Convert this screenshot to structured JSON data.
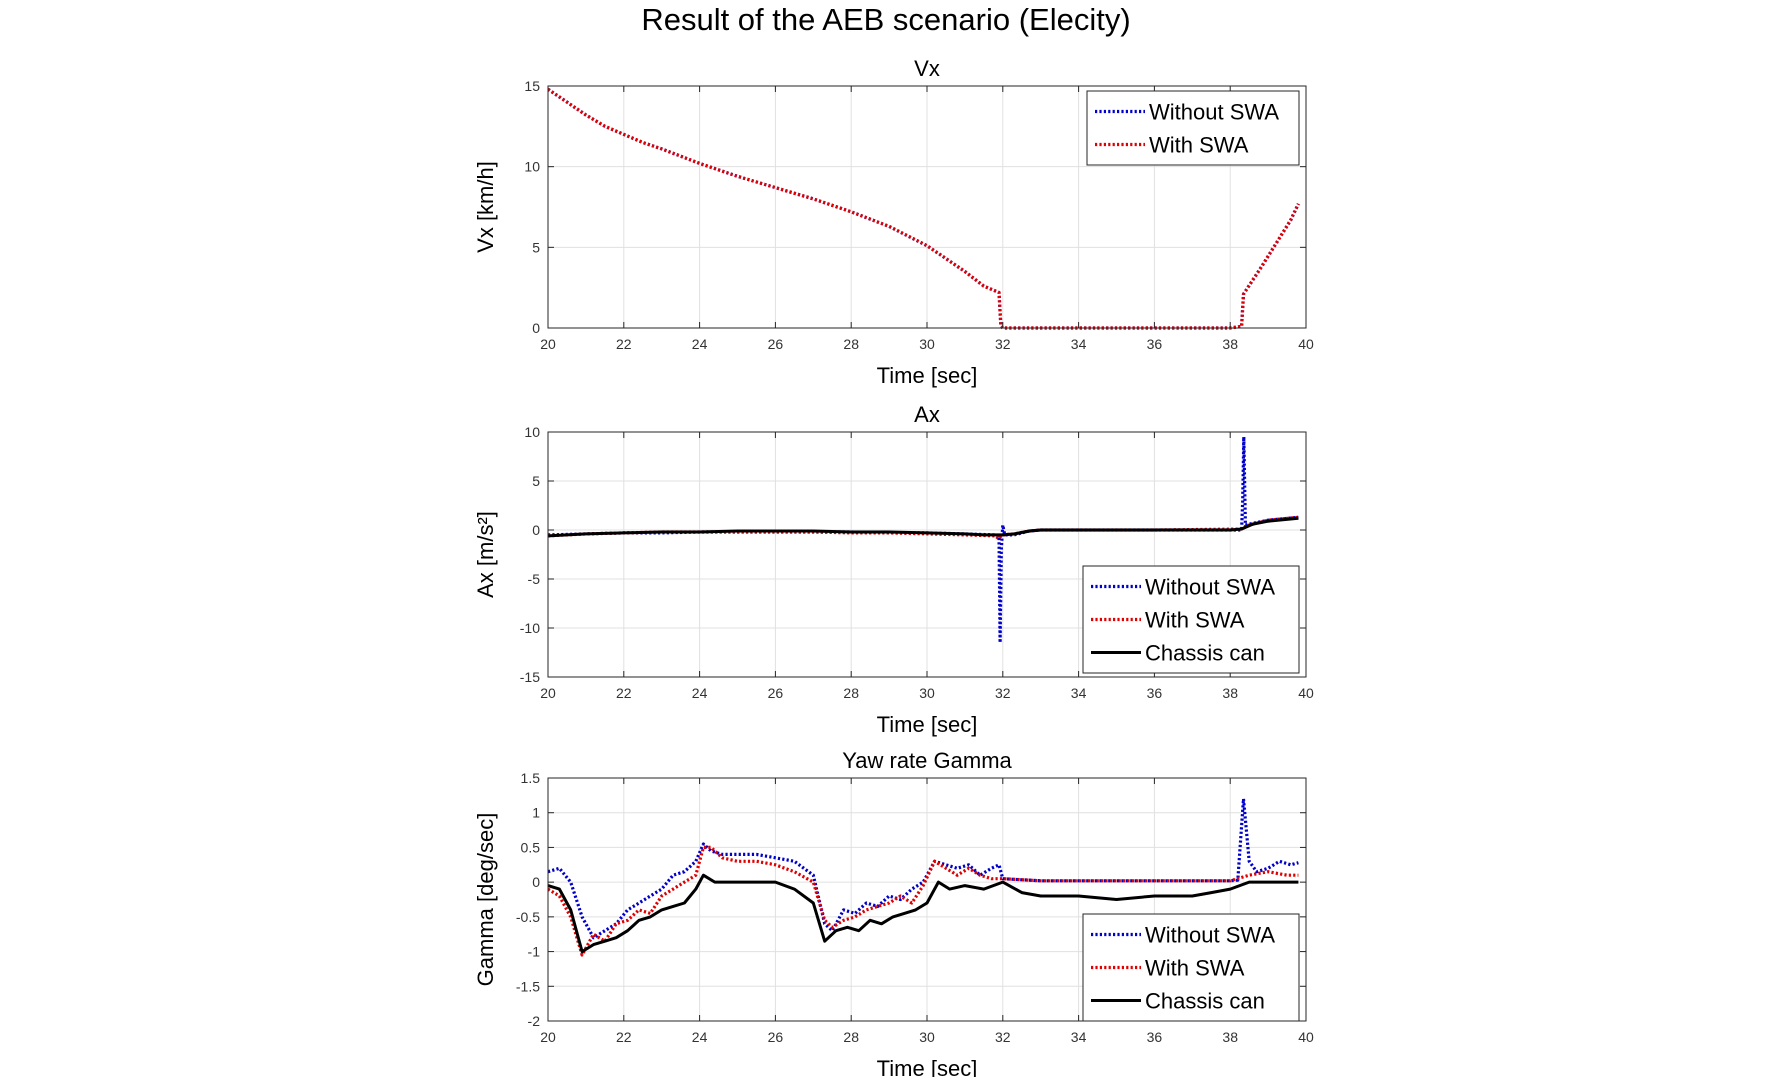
{
  "figure_title": "Result of the AEB scenario (Elecity)",
  "chart_data": [
    {
      "type": "line",
      "title": "Vx",
      "xlabel": "Time [sec]",
      "ylabel": "Vx [km/h]",
      "xlim": [
        20,
        40
      ],
      "ylim": [
        0,
        15
      ],
      "xticks": [
        20,
        22,
        24,
        26,
        28,
        30,
        32,
        34,
        36,
        38,
        40
      ],
      "yticks": [
        0,
        5,
        10,
        15
      ],
      "grid": true,
      "legend_position": "top-right",
      "series": [
        {
          "name": "Without SWA",
          "color": "#0000cc",
          "style": "dotted",
          "x": [
            20,
            20.5,
            21,
            21.5,
            22,
            22.5,
            23,
            24,
            25,
            26,
            27,
            28,
            29,
            30,
            30.5,
            31,
            31.5,
            31.9,
            31.95,
            32,
            33,
            34,
            35,
            36,
            37,
            38,
            38.3,
            38.35,
            38.8,
            39.2,
            39.6,
            39.8
          ],
          "y": [
            14.8,
            14.0,
            13.2,
            12.5,
            12.0,
            11.5,
            11.1,
            10.2,
            9.4,
            8.7,
            8.0,
            7.2,
            6.3,
            5.1,
            4.3,
            3.5,
            2.6,
            2.2,
            0.1,
            0,
            0,
            0,
            0,
            0,
            0,
            0,
            0.1,
            2.1,
            3.7,
            5.2,
            6.7,
            7.7
          ]
        },
        {
          "name": "With SWA",
          "color": "#e00000",
          "style": "dotted",
          "x": [
            20,
            20.5,
            21,
            21.5,
            22,
            22.5,
            23,
            24,
            25,
            26,
            27,
            28,
            29,
            30,
            30.5,
            31,
            31.5,
            31.9,
            31.95,
            32,
            33,
            34,
            35,
            36,
            37,
            38,
            38.3,
            38.35,
            38.8,
            39.2,
            39.6,
            39.8
          ],
          "y": [
            14.8,
            14.0,
            13.2,
            12.5,
            12.0,
            11.5,
            11.1,
            10.2,
            9.4,
            8.7,
            8.0,
            7.2,
            6.3,
            5.1,
            4.3,
            3.5,
            2.6,
            2.2,
            0.1,
            0,
            0,
            0,
            0,
            0,
            0,
            0,
            0.1,
            2.1,
            3.7,
            5.2,
            6.7,
            7.7
          ]
        }
      ]
    },
    {
      "type": "line",
      "title": "Ax",
      "xlabel": "Time [sec]",
      "ylabel": "Ax [m/s²]",
      "xlim": [
        20,
        40
      ],
      "ylim": [
        -15,
        10
      ],
      "xticks": [
        20,
        22,
        24,
        26,
        28,
        30,
        32,
        34,
        36,
        38,
        40
      ],
      "yticks": [
        -15,
        -10,
        -5,
        0,
        5,
        10
      ],
      "grid": true,
      "legend_position": "bottom-right",
      "series": [
        {
          "name": "Without SWA",
          "color": "#0000cc",
          "style": "dotted",
          "x": [
            20,
            21,
            22,
            23,
            24,
            25,
            26,
            27,
            28,
            29,
            30,
            31,
            31.8,
            31.9,
            31.93,
            31.96,
            32.0,
            32.05,
            32.3,
            32.7,
            33,
            34,
            36,
            38.3,
            38.33,
            38.36,
            38.4,
            38.5,
            39,
            39.8
          ],
          "y": [
            -0.5,
            -0.4,
            -0.3,
            -0.3,
            -0.2,
            -0.2,
            -0.2,
            -0.2,
            -0.2,
            -0.3,
            -0.3,
            -0.4,
            -0.5,
            -0.6,
            -11.5,
            -2,
            0.5,
            -0.5,
            -0.5,
            -0.1,
            0,
            0,
            0,
            0,
            3,
            9.5,
            0.5,
            0.6,
            1.0,
            1.3
          ]
        },
        {
          "name": "With SWA",
          "color": "#e00000",
          "style": "dotted",
          "x": [
            20,
            21,
            22,
            23,
            24,
            25,
            26,
            27,
            28,
            29,
            30,
            31,
            31.8,
            31.9,
            31.95,
            32.0,
            32.3,
            32.7,
            33,
            34,
            36,
            38.3,
            38.5,
            39,
            39.8
          ],
          "y": [
            -0.6,
            -0.4,
            -0.3,
            -0.2,
            -0.2,
            -0.2,
            -0.2,
            -0.2,
            -0.3,
            -0.3,
            -0.4,
            -0.5,
            -0.6,
            -0.9,
            -0.6,
            -0.5,
            -0.4,
            -0.1,
            0,
            0,
            0,
            0.1,
            0.5,
            1.0,
            1.3
          ]
        },
        {
          "name": "Chassis can",
          "color": "#000000",
          "style": "solid",
          "x": [
            20,
            21,
            22,
            23,
            24,
            25,
            26,
            27,
            28,
            29,
            30,
            31,
            31.5,
            32,
            32.3,
            32.7,
            33,
            34,
            36,
            38,
            38.3,
            38.6,
            39,
            39.8
          ],
          "y": [
            -0.6,
            -0.4,
            -0.3,
            -0.2,
            -0.2,
            -0.1,
            -0.1,
            -0.1,
            -0.2,
            -0.2,
            -0.3,
            -0.4,
            -0.5,
            -0.5,
            -0.4,
            -0.1,
            0,
            0,
            0,
            0,
            0.1,
            0.6,
            0.9,
            1.2
          ]
        }
      ]
    },
    {
      "type": "line",
      "title": "Yaw rate Gamma",
      "xlabel": "Time [sec]",
      "ylabel": "Gamma [deg/sec]",
      "xlim": [
        20,
        40
      ],
      "ylim": [
        -2,
        1.5
      ],
      "xticks": [
        20,
        22,
        24,
        26,
        28,
        30,
        32,
        34,
        36,
        38,
        40
      ],
      "yticks": [
        -2,
        -1.5,
        -1,
        -0.5,
        0,
        0.5,
        1,
        1.5
      ],
      "grid": true,
      "legend_position": "bottom-right",
      "series": [
        {
          "name": "Without SWA",
          "color": "#0000cc",
          "style": "dotted",
          "x": [
            20,
            20.3,
            20.6,
            20.9,
            21.2,
            21.5,
            21.8,
            22.1,
            22.4,
            22.7,
            23.0,
            23.3,
            23.6,
            23.9,
            24.1,
            24.3,
            24.6,
            25,
            25.5,
            26,
            26.5,
            27,
            27.3,
            27.5,
            27.8,
            28.1,
            28.4,
            28.7,
            29,
            29.3,
            29.6,
            29.9,
            30.2,
            30.5,
            30.8,
            31.1,
            31.4,
            31.7,
            31.9,
            32,
            33,
            34,
            35,
            36,
            37,
            38,
            38.2,
            38.35,
            38.5,
            38.7,
            39,
            39.3,
            39.6,
            39.8
          ],
          "y": [
            0.15,
            0.2,
            0.0,
            -0.5,
            -0.8,
            -0.7,
            -0.6,
            -0.4,
            -0.3,
            -0.2,
            -0.1,
            0.1,
            0.15,
            0.3,
            0.55,
            0.45,
            0.4,
            0.4,
            0.4,
            0.35,
            0.3,
            0.1,
            -0.6,
            -0.7,
            -0.4,
            -0.45,
            -0.3,
            -0.35,
            -0.2,
            -0.25,
            -0.1,
            0.0,
            0.3,
            0.25,
            0.2,
            0.25,
            0.1,
            0.2,
            0.25,
            0.05,
            0.02,
            0.02,
            0.02,
            0.02,
            0.02,
            0.02,
            0.03,
            1.2,
            0.3,
            0.15,
            0.2,
            0.3,
            0.25,
            0.28
          ]
        },
        {
          "name": "With SWA",
          "color": "#e00000",
          "style": "dotted",
          "x": [
            20,
            20.3,
            20.6,
            20.9,
            21.2,
            21.5,
            21.8,
            22.1,
            22.4,
            22.7,
            23.0,
            23.3,
            23.6,
            23.9,
            24.1,
            24.3,
            24.6,
            25,
            25.5,
            26,
            26.5,
            27,
            27.3,
            27.5,
            27.8,
            28.1,
            28.4,
            28.7,
            29,
            29.3,
            29.6,
            29.9,
            30.2,
            30.5,
            30.8,
            31.1,
            31.4,
            31.7,
            32,
            33,
            34,
            35,
            36,
            37,
            38,
            38.5,
            39,
            39.5,
            39.8
          ],
          "y": [
            -0.1,
            -0.2,
            -0.5,
            -1.05,
            -0.75,
            -0.85,
            -0.6,
            -0.55,
            -0.4,
            -0.45,
            -0.2,
            -0.1,
            0.0,
            0.1,
            0.5,
            0.5,
            0.35,
            0.3,
            0.3,
            0.25,
            0.15,
            0.0,
            -0.55,
            -0.65,
            -0.55,
            -0.5,
            -0.4,
            -0.35,
            -0.3,
            -0.2,
            -0.3,
            -0.05,
            0.3,
            0.2,
            0.1,
            0.2,
            0.1,
            0.05,
            0.05,
            0.02,
            0.02,
            0.02,
            0.02,
            0.02,
            0.02,
            0.1,
            0.15,
            0.1,
            0.1
          ]
        },
        {
          "name": "Chassis can",
          "color": "#000000",
          "style": "solid",
          "x": [
            20,
            20.3,
            20.6,
            20.9,
            21.2,
            21.5,
            21.8,
            22.1,
            22.4,
            22.7,
            23.0,
            23.3,
            23.6,
            23.9,
            24.1,
            24.4,
            25,
            26,
            26.5,
            27,
            27.3,
            27.6,
            27.9,
            28.2,
            28.5,
            28.8,
            29.1,
            29.4,
            29.7,
            30,
            30.3,
            30.6,
            31,
            31.5,
            32,
            32.5,
            33,
            34,
            35,
            36,
            37,
            37.5,
            38,
            38.5,
            39,
            39.8
          ],
          "y": [
            -0.05,
            -0.1,
            -0.4,
            -1.0,
            -0.9,
            -0.85,
            -0.8,
            -0.7,
            -0.55,
            -0.5,
            -0.4,
            -0.35,
            -0.3,
            -0.1,
            0.1,
            0.0,
            0.0,
            0.0,
            -0.1,
            -0.3,
            -0.85,
            -0.7,
            -0.65,
            -0.7,
            -0.55,
            -0.6,
            -0.5,
            -0.45,
            -0.4,
            -0.3,
            0.0,
            -0.1,
            -0.05,
            -0.1,
            0.0,
            -0.15,
            -0.2,
            -0.2,
            -0.25,
            -0.2,
            -0.2,
            -0.15,
            -0.1,
            0.0,
            0.0,
            0.0
          ]
        }
      ]
    }
  ]
}
